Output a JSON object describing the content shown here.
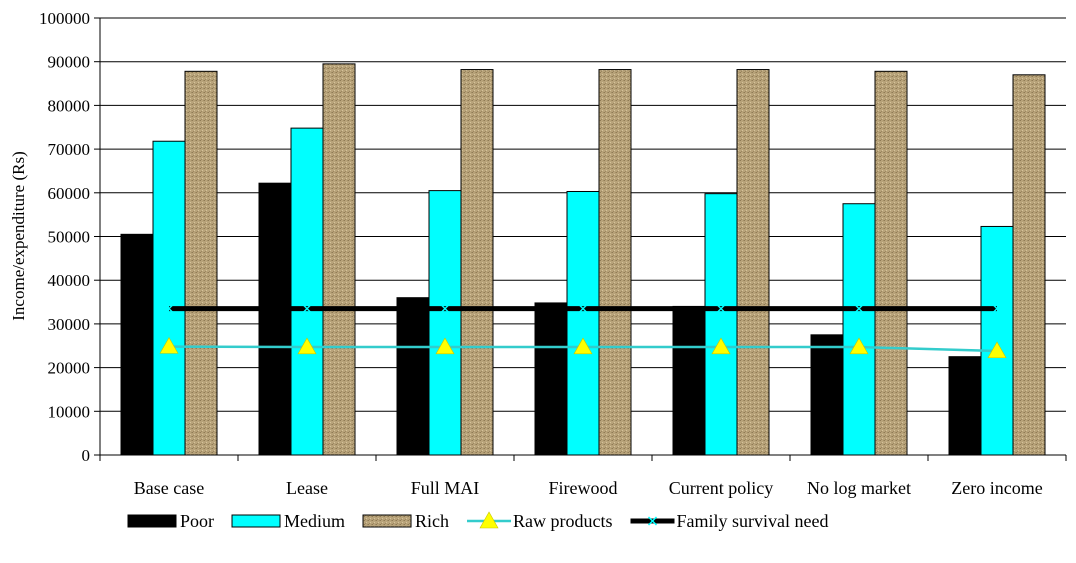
{
  "chart_data": {
    "type": "bar",
    "ylabel": "Income/expenditure (Rs)",
    "xlabel": "",
    "ylim": [
      0,
      100000
    ],
    "yticks": [
      0,
      10000,
      20000,
      30000,
      40000,
      50000,
      60000,
      70000,
      80000,
      90000,
      100000
    ],
    "grid": "horizontal",
    "legend_position": "bottom",
    "categories": [
      "Base case",
      "Lease",
      "Full MAI",
      "Firewood",
      "Current policy",
      "No log market",
      "Zero income"
    ],
    "series": [
      {
        "name": "Poor",
        "kind": "bar",
        "color": "#000000",
        "values": [
          50500,
          62200,
          36000,
          34800,
          34000,
          27500,
          22500
        ]
      },
      {
        "name": "Medium",
        "kind": "bar",
        "color": "#00ffff",
        "values": [
          71800,
          74800,
          60500,
          60300,
          59800,
          57500,
          52300
        ]
      },
      {
        "name": "Rich",
        "kind": "bar",
        "color": "#b8a37a",
        "values": [
          87800,
          89500,
          88200,
          88200,
          88200,
          87800,
          87000
        ]
      },
      {
        "name": "Raw products",
        "kind": "line",
        "color": "#33cccc",
        "marker": "triangle",
        "marker_color": "#ffff00",
        "values": [
          24800,
          24700,
          24700,
          24700,
          24700,
          24700,
          23800
        ]
      },
      {
        "name": "Family survival need",
        "kind": "line",
        "color": "#000000",
        "marker": "x",
        "marker_color": "#00ffff",
        "values": [
          33500,
          33500,
          33500,
          33500,
          33500,
          33500,
          33500
        ]
      }
    ]
  }
}
